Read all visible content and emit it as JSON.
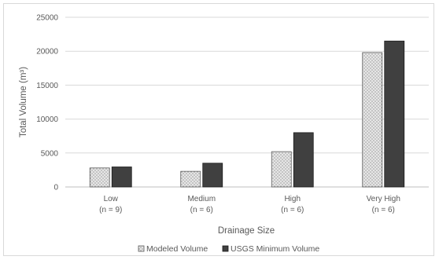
{
  "chart_data": {
    "type": "bar",
    "categories": [
      "Low",
      "Medium",
      "High",
      "Very High"
    ],
    "category_sublabels": [
      "(n = 9)",
      "(n = 6)",
      "(n = 6)",
      "(n = 6)"
    ],
    "series": [
      {
        "name": "Modeled Volume",
        "values": [
          2800,
          2300,
          5200,
          19800
        ],
        "fill": "dotted-light-gray"
      },
      {
        "name": "USGS Minimum Volume",
        "values": [
          2950,
          3500,
          8000,
          21500
        ],
        "fill": "#404040"
      }
    ],
    "xlabel": "Drainage Size",
    "ylabel": "Total Volume (m³)",
    "ylim": [
      0,
      25000
    ],
    "yticks": [
      0,
      5000,
      10000,
      15000,
      20000,
      25000
    ],
    "grid": true,
    "legend_position": "bottom"
  }
}
